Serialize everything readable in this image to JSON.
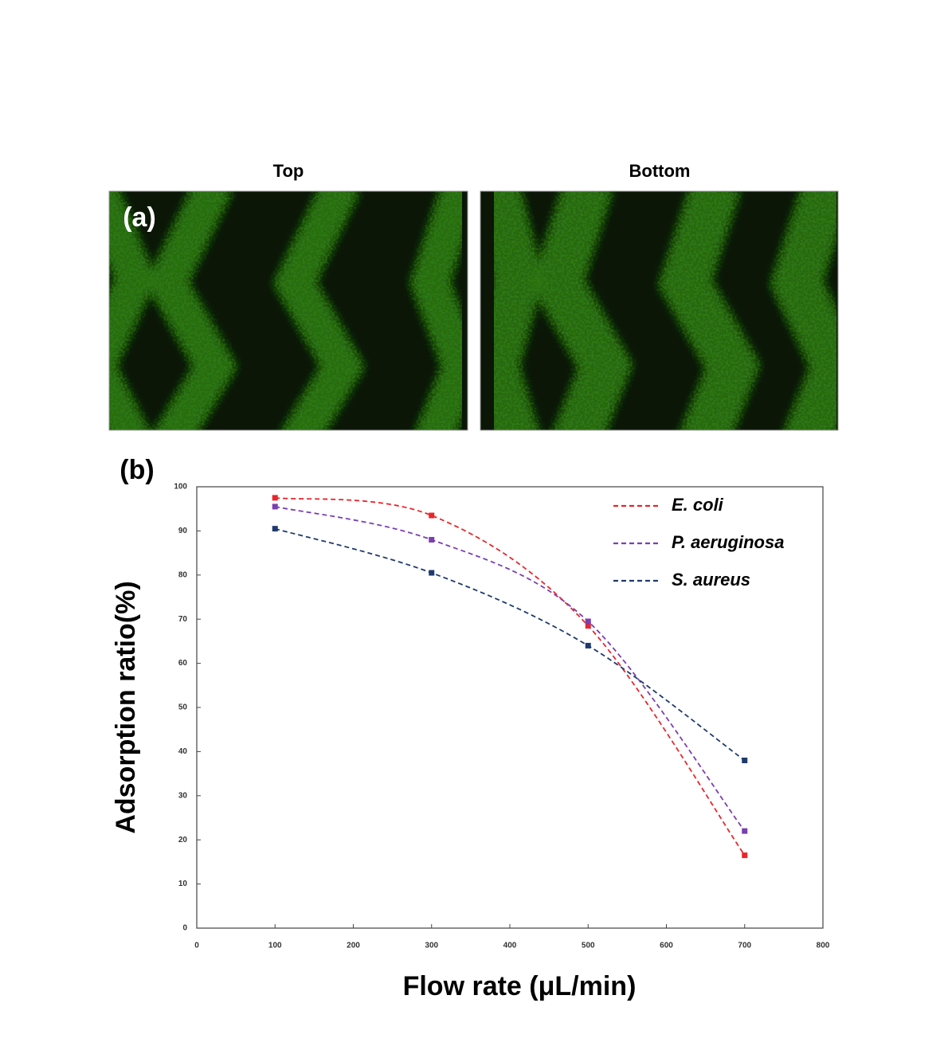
{
  "panel_a": {
    "label": "(a)",
    "image_titles": [
      "Top",
      "Bottom"
    ]
  },
  "panel_b": {
    "label": "(b)"
  },
  "chart_data": {
    "type": "line",
    "x_label": "Flow rate (μL/min)",
    "y_label": "Adsorption ratio(%)",
    "x": [
      100,
      300,
      500,
      700
    ],
    "series": [
      {
        "name": "E. coli",
        "color": "#e8262b",
        "values": [
          97.5,
          93.5,
          68.5,
          16.5
        ]
      },
      {
        "name": "P. aeruginosa",
        "color": "#7a3fb0",
        "values": [
          95.5,
          88,
          69.5,
          22
        ]
      },
      {
        "name": "S. aureus",
        "color": "#1f3a6e",
        "values": [
          90.5,
          80.5,
          64,
          38
        ]
      }
    ],
    "xlim": [
      0,
      800
    ],
    "xticks": [
      0,
      100,
      200,
      300,
      400,
      500,
      600,
      700,
      800
    ],
    "ylim": [
      0,
      100
    ],
    "yticks": [
      0,
      10,
      20,
      30,
      40,
      50,
      60,
      70,
      80,
      90,
      100
    ],
    "line_style": "dashed",
    "smooth": true,
    "legend": "upper right",
    "grid": false
  }
}
